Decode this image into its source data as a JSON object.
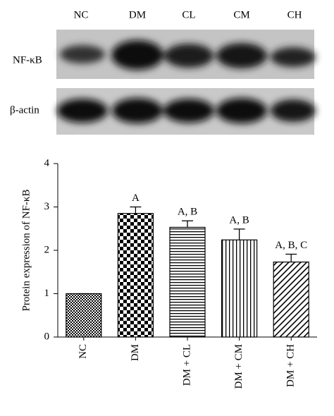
{
  "blot": {
    "lanes": [
      "NC",
      "DM",
      "CL",
      "CM",
      "CH"
    ],
    "rows": [
      "NF-κB",
      "β-actin"
    ]
  },
  "chart_data": {
    "type": "bar",
    "ylabel": "Protein expression of NF-κB",
    "categories": [
      "NC",
      "DM",
      "DM + CL",
      "DM + CM",
      "DM + CH"
    ],
    "values": [
      1,
      2.85,
      2.53,
      2.24,
      1.73
    ],
    "errors": [
      0,
      0.15,
      0.15,
      0.25,
      0.18
    ],
    "annotations": [
      null,
      "A",
      "A, B",
      "A, B",
      "A, B, C"
    ],
    "color": "#000000",
    "ylim": [
      0,
      4
    ],
    "yticks": [
      0,
      1,
      2,
      3,
      4
    ]
  }
}
